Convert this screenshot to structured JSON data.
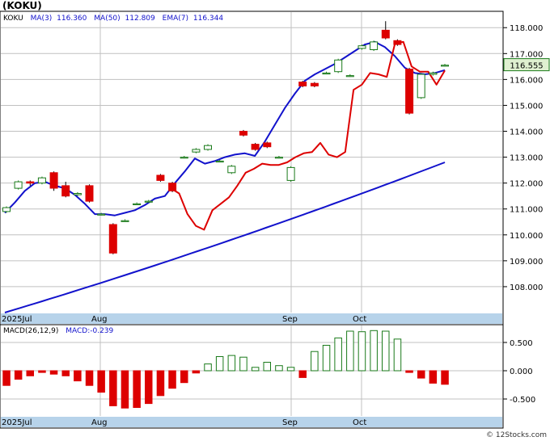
{
  "title": "(KOKU)",
  "legend": {
    "symbol": "KOKU",
    "ma3": "MA(3)",
    "ma3_value": "116.360",
    "ma50": "MA(50)",
    "ma50_value": "112.809",
    "ema7": "EMA(7)",
    "ema7_value": "116.344"
  },
  "macd_legend": {
    "label": "MACD(26,12,9)",
    "value_label": "MACD:-0.239"
  },
  "last_price_label": "116.555",
  "footer": "© 12Stocks.com",
  "colors": {
    "up": "#1a7a1a",
    "down": "#dd0000",
    "ma": "#1212cc",
    "ema": "#dd0000",
    "grid": "#c0c0c0",
    "axis_band": "#b7d3ea",
    "last_box": "#dff0d0"
  },
  "chart_data": [
    {
      "type": "candlestick",
      "ylim": [
        107,
        118.6
      ],
      "y_ticks": [
        "108.000",
        "109.000",
        "110.000",
        "111.000",
        "112.000",
        "113.000",
        "114.000",
        "115.000",
        "116.000",
        "117.000",
        "118.000"
      ],
      "x_labels": [
        "2025Jul",
        "Aug",
        "Sep",
        "Oct"
      ],
      "candles": [
        {
          "o": 110.9,
          "c": 111.05,
          "h": 111.1,
          "l": 110.85
        },
        {
          "o": 111.8,
          "c": 112.05,
          "h": 112.1,
          "l": 111.75
        },
        {
          "o": 112.05,
          "c": 112.0,
          "h": 112.1,
          "l": 111.9
        },
        {
          "o": 112.0,
          "c": 112.2,
          "h": 112.25,
          "l": 111.95
        },
        {
          "o": 112.4,
          "c": 111.8,
          "h": 112.45,
          "l": 111.7
        },
        {
          "o": 111.9,
          "c": 111.5,
          "h": 112.05,
          "l": 111.45
        },
        {
          "o": 111.55,
          "c": 111.6,
          "h": 111.65,
          "l": 111.5
        },
        {
          "o": 111.9,
          "c": 111.3,
          "h": 111.95,
          "l": 111.25
        },
        {
          "o": 110.8,
          "c": 110.8,
          "h": 110.85,
          "l": 110.75
        },
        {
          "o": 110.4,
          "c": 109.3,
          "h": 110.45,
          "l": 109.25
        },
        {
          "o": 110.55,
          "c": 110.55,
          "h": 110.6,
          "l": 110.5
        },
        {
          "o": 111.2,
          "c": 111.2,
          "h": 111.25,
          "l": 111.15
        },
        {
          "o": 111.3,
          "c": 111.3,
          "h": 111.35,
          "l": 111.25
        },
        {
          "o": 112.3,
          "c": 112.1,
          "h": 112.35,
          "l": 112.05
        },
        {
          "o": 112.0,
          "c": 111.7,
          "h": 112.05,
          "l": 111.65
        },
        {
          "o": 113.0,
          "c": 113.0,
          "h": 113.05,
          "l": 112.95
        },
        {
          "o": 113.2,
          "c": 113.3,
          "h": 113.35,
          "l": 113.15
        },
        {
          "o": 113.3,
          "c": 113.45,
          "h": 113.5,
          "l": 113.25
        },
        {
          "o": 112.85,
          "c": 112.85,
          "h": 112.9,
          "l": 112.8
        },
        {
          "o": 112.4,
          "c": 112.65,
          "h": 112.7,
          "l": 112.35
        },
        {
          "o": 114.0,
          "c": 113.85,
          "h": 114.05,
          "l": 113.8
        },
        {
          "o": 113.5,
          "c": 113.3,
          "h": 113.55,
          "l": 113.25
        },
        {
          "o": 113.55,
          "c": 113.4,
          "h": 113.6,
          "l": 113.35
        },
        {
          "o": 113.0,
          "c": 113.0,
          "h": 113.05,
          "l": 112.95
        },
        {
          "o": 112.1,
          "c": 112.6,
          "h": 112.65,
          "l": 112.05
        },
        {
          "o": 115.9,
          "c": 115.75,
          "h": 115.95,
          "l": 115.7
        },
        {
          "o": 115.85,
          "c": 115.75,
          "h": 115.9,
          "l": 115.7
        },
        {
          "o": 116.25,
          "c": 116.25,
          "h": 116.3,
          "l": 116.2
        },
        {
          "o": 116.3,
          "c": 116.75,
          "h": 116.8,
          "l": 116.25
        },
        {
          "o": 116.15,
          "c": 116.15,
          "h": 116.2,
          "l": 116.1
        },
        {
          "o": 117.2,
          "c": 117.3,
          "h": 117.35,
          "l": 117.15
        },
        {
          "o": 117.15,
          "c": 117.45,
          "h": 117.5,
          "l": 117.1
        },
        {
          "o": 117.9,
          "c": 117.6,
          "h": 118.25,
          "l": 117.55
        },
        {
          "o": 117.5,
          "c": 117.35,
          "h": 117.55,
          "l": 117.3
        },
        {
          "o": 116.4,
          "c": 114.7,
          "h": 116.45,
          "l": 114.65
        },
        {
          "o": 115.3,
          "c": 116.2,
          "h": 116.25,
          "l": 115.25
        },
        {
          "o": 116.2,
          "c": 116.25,
          "h": 116.3,
          "l": 116.15
        },
        {
          "o": 116.55,
          "c": 116.55,
          "h": 116.6,
          "l": 116.5
        }
      ],
      "ma3": [
        110.85,
        111.25,
        111.7,
        112.0,
        112.05,
        111.9,
        111.8,
        111.55,
        111.2,
        110.8,
        110.8,
        110.75,
        110.85,
        110.95,
        111.15,
        111.4,
        111.5,
        112.0,
        112.45,
        112.95,
        112.75,
        112.85,
        113.0,
        113.1,
        113.15,
        113.05,
        113.6,
        114.25,
        114.9,
        115.45,
        115.95,
        116.2,
        116.4,
        116.6,
        116.85,
        117.1,
        117.35,
        117.45,
        117.25,
        116.9,
        116.45,
        116.25,
        116.2,
        116.25,
        116.36
      ],
      "ema7": [
        null,
        null,
        null,
        null,
        null,
        null,
        null,
        null,
        null,
        null,
        null,
        null,
        null,
        null,
        null,
        null,
        null,
        null,
        null,
        null,
        111.8,
        111.6,
        110.8,
        110.35,
        110.2,
        110.95,
        111.2,
        111.45,
        111.9,
        112.4,
        112.55,
        112.75,
        112.7,
        112.7,
        112.8,
        113.0,
        113.15,
        113.2,
        113.55,
        113.1,
        113.0,
        113.2,
        115.6,
        115.8,
        116.25,
        116.2,
        116.1,
        117.4,
        117.45,
        116.5,
        116.3,
        116.3,
        115.8,
        116.344
      ]
    },
    {
      "type": "bar",
      "title": "MACD(26,12,9)",
      "ylim": [
        -0.8,
        0.8
      ],
      "y_ticks": [
        "0.500",
        "0.000",
        "-0.500"
      ],
      "values": [
        -0.26,
        -0.15,
        -0.09,
        -0.03,
        -0.06,
        -0.09,
        -0.18,
        -0.26,
        -0.38,
        -0.62,
        -0.66,
        -0.65,
        -0.58,
        -0.44,
        -0.31,
        -0.21,
        -0.04,
        0.12,
        0.25,
        0.27,
        0.24,
        0.06,
        0.15,
        0.09,
        0.06,
        -0.12,
        0.34,
        0.45,
        0.58,
        0.7,
        0.69,
        0.71,
        0.7,
        0.56,
        -0.03,
        -0.13,
        -0.22,
        -0.24
      ]
    }
  ]
}
